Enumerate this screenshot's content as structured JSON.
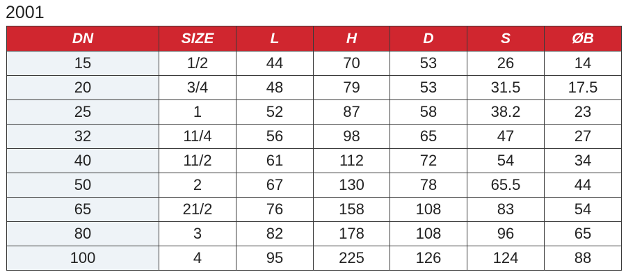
{
  "title": "2001",
  "colors": {
    "header_bg": "#d0262f",
    "header_text": "#ffffff",
    "first_col_bg": "#eef3f7"
  },
  "table": {
    "headers": [
      "DN",
      "SIZE",
      "L",
      "H",
      "D",
      "S",
      "ØB"
    ],
    "rows": [
      [
        "15",
        "1/2",
        "44",
        "70",
        "53",
        "26",
        "14"
      ],
      [
        "20",
        "3/4",
        "48",
        "79",
        "53",
        "31.5",
        "17.5"
      ],
      [
        "25",
        "1",
        "52",
        "87",
        "58",
        "38.2",
        "23"
      ],
      [
        "32",
        "11/4",
        "56",
        "98",
        "65",
        "47",
        "27"
      ],
      [
        "40",
        "11/2",
        "61",
        "112",
        "72",
        "54",
        "34"
      ],
      [
        "50",
        "2",
        "67",
        "130",
        "78",
        "65.5",
        "44"
      ],
      [
        "65",
        "21/2",
        "76",
        "158",
        "108",
        "83",
        "54"
      ],
      [
        "80",
        "3",
        "82",
        "178",
        "108",
        "96",
        "65"
      ],
      [
        "100",
        "4",
        "95",
        "225",
        "126",
        "124",
        "88"
      ]
    ]
  }
}
